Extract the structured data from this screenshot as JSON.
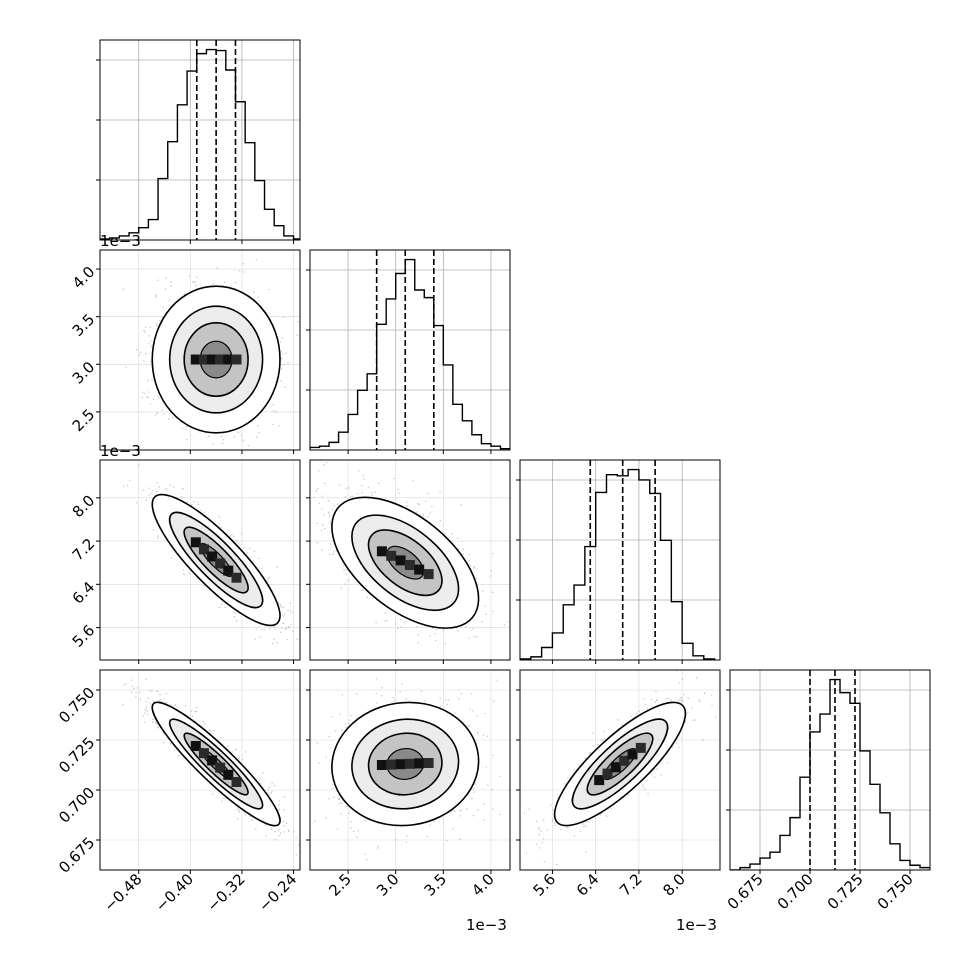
{
  "chart_data": {
    "type": "corner",
    "title": "",
    "parameters": [
      "",
      "",
      "",
      ""
    ],
    "quantiles": [
      0.16,
      0.5,
      0.84
    ],
    "grid": true,
    "offset_labels": {
      "p1_y": "1e−3",
      "p2_y": "1e−3",
      "p1_x": "1e−3",
      "p2_x": "1e−3"
    },
    "ranges": [
      [
        -0.54,
        -0.23
      ],
      [
        2.1,
        4.2
      ],
      [
        5.0,
        8.7
      ],
      [
        0.66,
        0.76
      ]
    ],
    "tick_values": [
      [
        -0.48,
        -0.4,
        -0.32,
        -0.24
      ],
      [
        2.5,
        3.0,
        3.5,
        4.0
      ],
      [
        5.6,
        6.4,
        7.2,
        8.0
      ],
      [
        0.675,
        0.7,
        0.725,
        0.75
      ]
    ],
    "tick_labels": [
      [
        "−0.48",
        "−0.40",
        "−0.32",
        "−0.24"
      ],
      [
        "2.5",
        "3.0",
        "3.5",
        "4.0"
      ],
      [
        "5.6",
        "6.4",
        "7.2",
        "8.0"
      ],
      [
        "0.675",
        "0.700",
        "0.725",
        "0.750"
      ]
    ],
    "marginals": [
      {
        "parameter": 0,
        "quantile_values": [
          -0.39,
          -0.36,
          -0.33
        ],
        "bin_edges": [
          -0.54,
          -0.525,
          -0.51,
          -0.495,
          -0.48,
          -0.465,
          -0.45,
          -0.435,
          -0.42,
          -0.405,
          -0.39,
          -0.375,
          -0.36,
          -0.345,
          -0.33,
          -0.315,
          -0.3,
          -0.285,
          -0.27,
          -0.255,
          -0.24,
          -0.225
        ],
        "counts": [
          1,
          2,
          4,
          7,
          12,
          20,
          60,
          96,
          132,
          165,
          182,
          186,
          185,
          166,
          135,
          95,
          58,
          30,
          14,
          4,
          1
        ]
      },
      {
        "parameter": 1,
        "quantile_values": [
          2.8,
          3.1,
          3.4
        ],
        "bin_edges": [
          2.1,
          2.2,
          2.3,
          2.4,
          2.5,
          2.6,
          2.7,
          2.8,
          2.9,
          3.0,
          3.1,
          3.2,
          3.3,
          3.4,
          3.5,
          3.6,
          3.7,
          3.8,
          3.9,
          4.0,
          4.1,
          4.2
        ],
        "counts": [
          2,
          3,
          6,
          14,
          28,
          47,
          60,
          99,
          119,
          139,
          150,
          126,
          120,
          98,
          67,
          36,
          23,
          12,
          5,
          3,
          1
        ]
      },
      {
        "parameter": 2,
        "quantile_values": [
          6.3,
          6.9,
          7.5
        ],
        "bin_edges": [
          5.0,
          5.2,
          5.4,
          5.6,
          5.8,
          6.0,
          6.2,
          6.4,
          6.6,
          6.8,
          7.0,
          7.2,
          7.4,
          7.6,
          7.8,
          8.0,
          8.2,
          8.4,
          8.6
        ],
        "counts": [
          1,
          3,
          12,
          26,
          53,
          72,
          109,
          161,
          178,
          177,
          183,
          173,
          160,
          115,
          56,
          16,
          4,
          1
        ]
      },
      {
        "parameter": 3,
        "quantile_values": [
          0.7,
          0.7125,
          0.7225
        ],
        "bin_edges": [
          0.66,
          0.665,
          0.67,
          0.675,
          0.68,
          0.685,
          0.69,
          0.695,
          0.7,
          0.705,
          0.71,
          0.715,
          0.72,
          0.725,
          0.73,
          0.735,
          0.74,
          0.745,
          0.75,
          0.755,
          0.76
        ],
        "counts": [
          0,
          2,
          5,
          10,
          15,
          29,
          44,
          78,
          116,
          131,
          160,
          149,
          140,
          100,
          72,
          48,
          22,
          8,
          4,
          2
        ]
      }
    ],
    "joints": [
      {
        "x": 0,
        "y": 1,
        "mean": [
          -0.36,
          3.05
        ],
        "std": [
          0.045,
          0.35
        ],
        "corr": 0.0
      },
      {
        "x": 0,
        "y": 2,
        "mean": [
          -0.36,
          6.85
        ],
        "std": [
          0.045,
          0.55
        ],
        "corr": -0.85
      },
      {
        "x": 1,
        "y": 2,
        "mean": [
          3.1,
          6.8
        ],
        "std": [
          0.35,
          0.55
        ],
        "corr": -0.55
      },
      {
        "x": 0,
        "y": 3,
        "mean": [
          -0.36,
          0.713
        ],
        "std": [
          0.045,
          0.014
        ],
        "corr": -0.92
      },
      {
        "x": 1,
        "y": 3,
        "mean": [
          3.1,
          0.713
        ],
        "std": [
          0.35,
          0.014
        ],
        "corr": 0.05
      },
      {
        "x": 2,
        "y": 3,
        "mean": [
          6.85,
          0.713
        ],
        "std": [
          0.55,
          0.014
        ],
        "corr": 0.82
      }
    ]
  }
}
